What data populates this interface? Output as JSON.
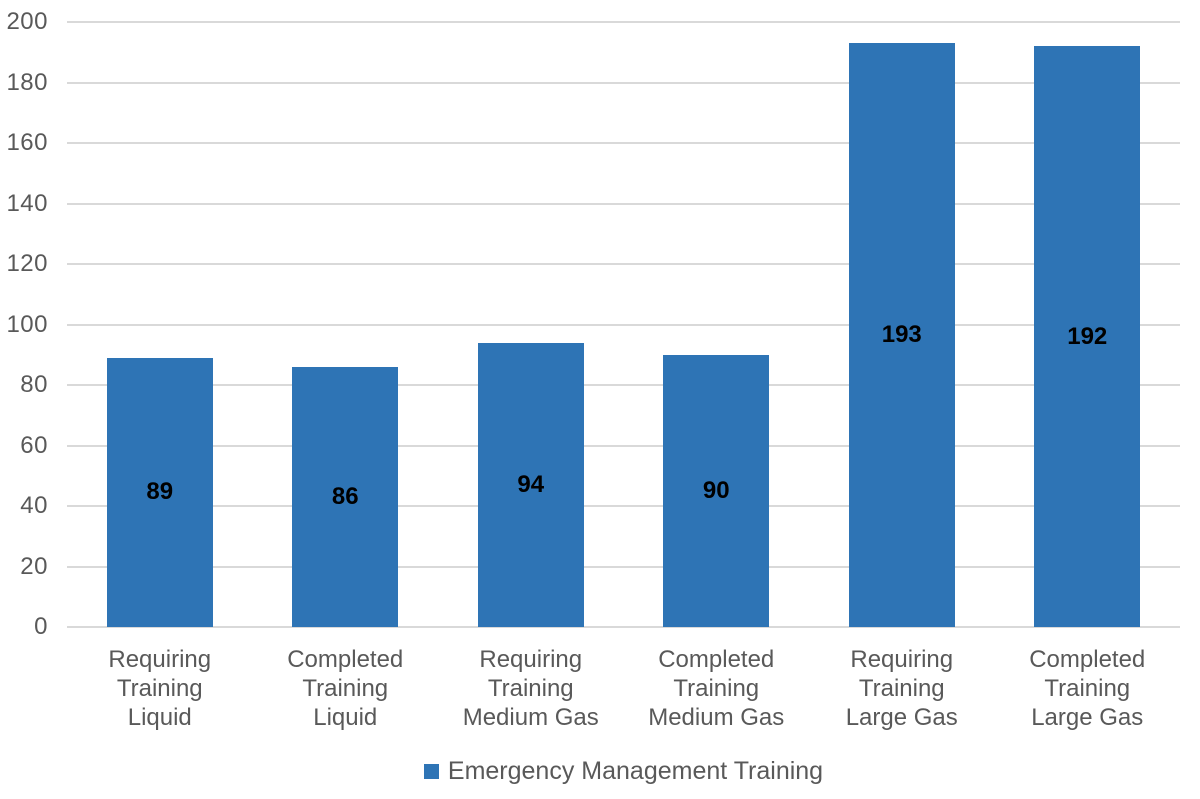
{
  "chart_data": {
    "type": "bar",
    "title": "",
    "categories": [
      "Requiring Training Liquid",
      "Completed Training Liquid",
      "Requiring Training Medium Gas",
      "Completed Training Medium Gas",
      "Requiring Training Large Gas",
      "Completed Training Large Gas"
    ],
    "category_label_lines": [
      [
        "Requiring",
        "Training",
        "Liquid"
      ],
      [
        "Completed",
        "Training",
        "Liquid"
      ],
      [
        "Requiring",
        "Training",
        "Medium Gas"
      ],
      [
        "Completed",
        "Training",
        "Medium Gas"
      ],
      [
        "Requiring",
        "Training",
        "Large Gas"
      ],
      [
        "Completed",
        "Training",
        "Large Gas"
      ]
    ],
    "series": [
      {
        "name": "Emergency Management Training",
        "values": [
          89,
          86,
          94,
          90,
          193,
          192
        ]
      }
    ],
    "value_labels": [
      "89",
      "86",
      "94",
      "90",
      "193",
      "192"
    ],
    "value_label_position": "center-of-bar",
    "xlabel": "",
    "ylabel": "",
    "ylim": [
      0,
      200
    ],
    "yticks": [
      0,
      20,
      40,
      60,
      80,
      100,
      120,
      140,
      160,
      180,
      200
    ],
    "grid": "horizontal",
    "legend": {
      "position": "bottom-center",
      "label": "Emergency Management Training"
    },
    "colors": {
      "bar": "#2E74B5",
      "gridline": "#D9D9D9",
      "axis_text": "#595959",
      "value_label": "#000000",
      "background": "#FFFFFF"
    }
  }
}
